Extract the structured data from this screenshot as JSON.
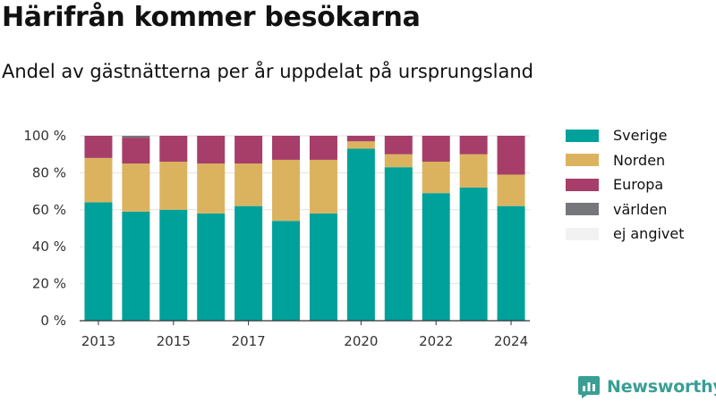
{
  "title": "Härifrån kommer besökarna",
  "subtitle": "Andel av gästnätterna per år uppdelat på ursprungsland",
  "brand": {
    "name": "Newsworthy",
    "icon": "newsworthy-logo-icon",
    "color": "#3a9e94"
  },
  "chart_data": {
    "type": "bar",
    "stacked": true,
    "categories": [
      "2013",
      "2014",
      "2015",
      "2016",
      "2017",
      "2018",
      "2019",
      "2020",
      "2021",
      "2022",
      "2023",
      "2024"
    ],
    "x_tick_labels": [
      "2013",
      "2015",
      "2017",
      "2020",
      "2022",
      "2024"
    ],
    "series": [
      {
        "name": "Sverige",
        "color": "#00a19a",
        "values": [
          64,
          59,
          60,
          58,
          62,
          54,
          58,
          93,
          83,
          69,
          72,
          62
        ]
      },
      {
        "name": "Norden",
        "color": "#dbb35f",
        "values": [
          24,
          26,
          26,
          27,
          23,
          33,
          29,
          4,
          7,
          17,
          18,
          17
        ]
      },
      {
        "name": "Europa",
        "color": "#a63e69",
        "values": [
          12,
          14,
          14,
          15,
          15,
          13,
          13,
          3,
          10,
          14,
          10,
          21
        ]
      },
      {
        "name": "världen",
        "color": "#76777a",
        "values": [
          0,
          1,
          0,
          0,
          0,
          0,
          0,
          0,
          0,
          0,
          0,
          0
        ]
      },
      {
        "name": "ej angivet",
        "color": "#f2f2f2",
        "values": [
          0,
          0,
          0,
          0,
          0,
          0,
          0,
          0,
          0,
          0,
          0,
          0
        ]
      }
    ],
    "ylim": [
      0,
      100
    ],
    "y_ticks": [
      0,
      20,
      40,
      60,
      80,
      100
    ],
    "y_tick_labels": [
      "0 %",
      "20 %",
      "40 %",
      "60 %",
      "80 %",
      "100 %"
    ],
    "xlabel": "",
    "ylabel": "",
    "grid": true,
    "legend_position": "right"
  }
}
